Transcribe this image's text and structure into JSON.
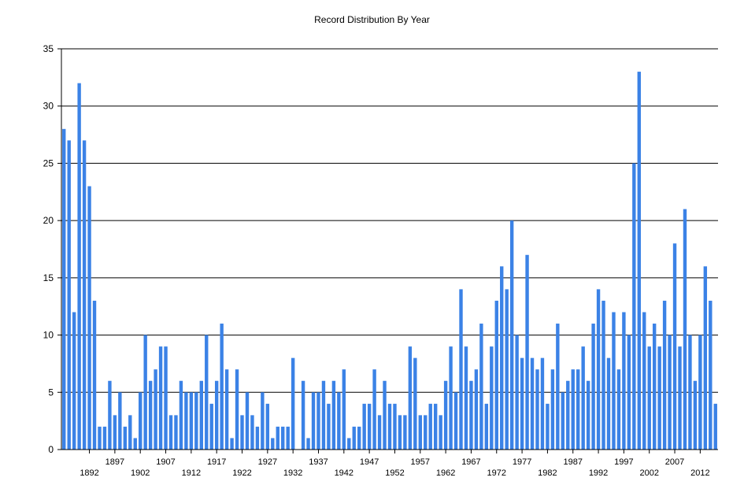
{
  "chart_data": {
    "type": "bar",
    "title": "Record Distribution By Year",
    "xlabel": "",
    "ylabel": "",
    "ylim": [
      0,
      35
    ],
    "yticks": [
      0,
      5,
      10,
      15,
      20,
      25,
      30,
      35
    ],
    "grid": true,
    "bar_color": "#3b82e6",
    "x_start": 1887,
    "values": [
      28,
      27,
      12,
      32,
      27,
      23,
      13,
      2,
      2,
      6,
      3,
      5,
      2,
      3,
      1,
      5,
      10,
      6,
      7,
      9,
      9,
      3,
      3,
      6,
      5,
      5,
      5,
      6,
      10,
      4,
      6,
      11,
      7,
      1,
      7,
      3,
      5,
      3,
      2,
      5,
      4,
      1,
      2,
      2,
      2,
      8,
      0,
      6,
      1,
      5,
      5,
      6,
      4,
      6,
      5,
      7,
      1,
      2,
      2,
      4,
      4,
      7,
      3,
      6,
      4,
      4,
      3,
      3,
      9,
      8,
      3,
      3,
      4,
      4,
      3,
      6,
      9,
      5,
      14,
      9,
      6,
      7,
      11,
      4,
      9,
      13,
      16,
      14,
      20,
      10,
      8,
      17,
      8,
      7,
      8,
      4,
      7,
      11,
      5,
      6,
      7,
      7,
      9,
      6,
      11,
      14,
      13,
      8,
      12,
      7,
      12,
      10,
      25,
      33,
      12,
      9,
      11,
      9,
      13,
      10,
      18,
      9,
      21,
      10,
      6,
      10,
      16,
      13,
      4
    ],
    "x_tick_labels_row1": [
      "1897",
      "1907",
      "1917",
      "1927",
      "1937",
      "1947",
      "1957",
      "1967",
      "1977",
      "1987",
      "1997",
      "2007"
    ],
    "x_tick_labels_row2": [
      "1892",
      "1902",
      "1912",
      "1922",
      "1932",
      "1942",
      "1952",
      "1962",
      "1972",
      "1982",
      "1992",
      "2002",
      "2012"
    ]
  }
}
